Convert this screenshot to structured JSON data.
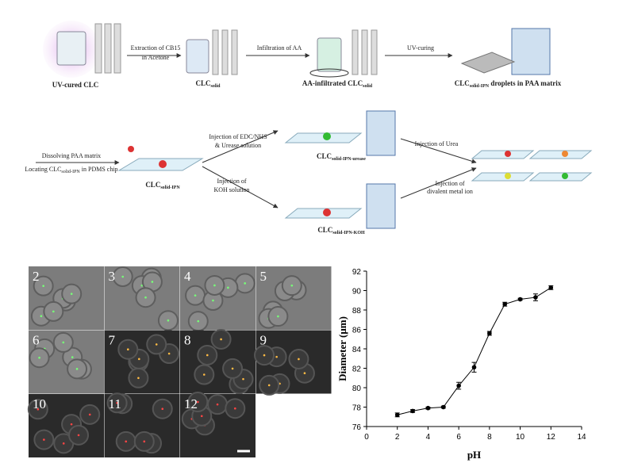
{
  "schematic": {
    "row1": {
      "uv_cured": "UV-cured CLC",
      "extraction": [
        "Extraction of CB15",
        "in Acetone"
      ],
      "clc_solid": {
        "main": "CLC",
        "sub": "solid"
      },
      "infiltration": "Infiltration of AA",
      "aa_infiltrated": {
        "main": "AA-infiltrated CLC",
        "sub": "solid"
      },
      "uv_curing": "UV-curing",
      "droplets": {
        "main": "CLC",
        "sub": "solid-IPN",
        "rest": " droplets in PAA matrix"
      }
    },
    "row2": {
      "dissolving": "Dissolving PAA matrix",
      "locating": {
        "main": "Locating CLC",
        "sub": "solid-IPN",
        "rest": " in PDMS chip"
      },
      "clc_ipn": {
        "main": "CLC",
        "sub": "solid-IPN"
      },
      "edc": [
        "Injection of EDC/NHS",
        "& Urease solution"
      ],
      "koh": [
        "Injection of",
        "KOH solution"
      ],
      "urease_label": {
        "main": "CLC",
        "sub": "solid-IPN-urease"
      },
      "koh_label": {
        "main": "CLC",
        "sub": "solid-IPN-KOH"
      },
      "urea": "Injection of Urea",
      "metal": [
        "Injection of",
        "divalent metal ion"
      ]
    }
  },
  "micrographs": {
    "panels": [
      "2",
      "3",
      "4",
      "5",
      "6",
      "7",
      "8",
      "9",
      "10",
      "11",
      "12"
    ]
  },
  "chart_data": {
    "type": "line",
    "x_label": "pH",
    "y_label": "Diameter (μm)",
    "x": [
      2,
      3,
      4,
      5,
      6,
      7,
      8,
      9,
      10,
      11,
      12
    ],
    "series": [
      {
        "color": "#000000",
        "values": [
          77.2,
          77.6,
          77.9,
          78.0,
          80.2,
          82.1,
          85.6,
          88.6,
          89.1,
          89.3,
          90.3
        ],
        "errors": [
          0.2,
          0.15,
          0.1,
          0.1,
          0.35,
          0.5,
          0.2,
          0.2,
          0.1,
          0.35,
          0.2
        ]
      }
    ],
    "xlim": [
      0,
      14
    ],
    "xticks": [
      0,
      2,
      4,
      6,
      8,
      10,
      12,
      14
    ],
    "ylim": [
      76,
      92
    ],
    "yticks": [
      76,
      78,
      80,
      82,
      84,
      86,
      88,
      90,
      92
    ]
  }
}
